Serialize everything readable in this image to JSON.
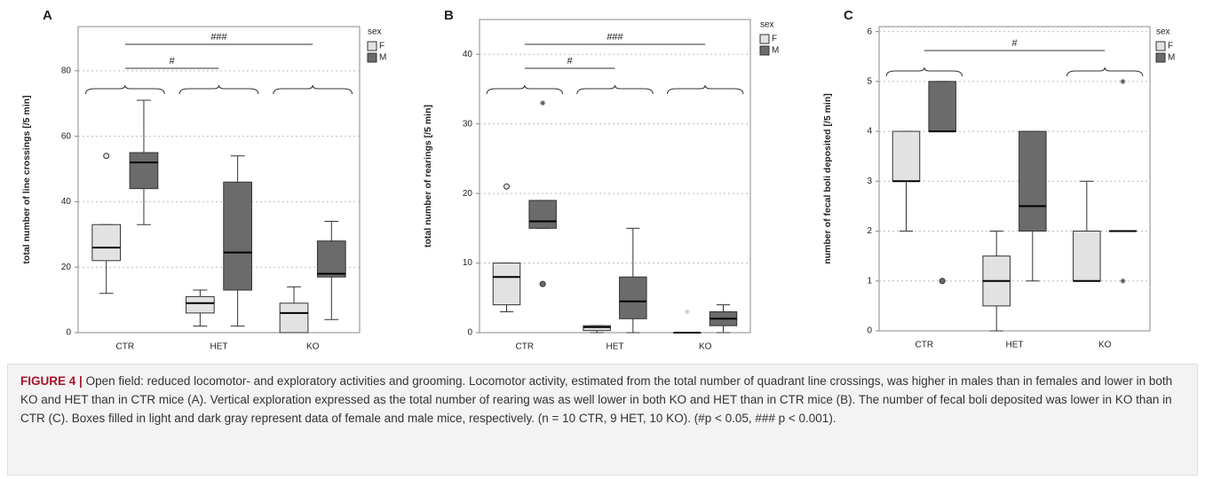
{
  "chart_data": [
    {
      "type": "box",
      "panel": "A",
      "ylabel": "total number of line crossings [/5 min]",
      "categories": [
        "CTR",
        "HET",
        "KO"
      ],
      "ylim": [
        0,
        93.5
      ],
      "yticks": [
        0,
        20,
        40,
        60,
        80
      ],
      "grid": true,
      "legend_title": "sex",
      "annotations": [
        "###",
        "#"
      ],
      "series": [
        {
          "name": "F",
          "color": "#e2e2e2",
          "values": [
            {
              "min": 12,
              "q1": 22,
              "median": 26,
              "q3": 33,
              "max": 33,
              "outliers": [
                54
              ],
              "extremes": []
            },
            {
              "min": 2,
              "q1": 6,
              "median": 9,
              "q3": 11,
              "max": 13,
              "outliers": [],
              "extremes": []
            },
            {
              "min": 0,
              "q1": 0,
              "median": 6,
              "q3": 9,
              "max": 14,
              "outliers": [],
              "extremes": []
            }
          ]
        },
        {
          "name": "M",
          "color": "#6b6b6b",
          "values": [
            {
              "min": 33,
              "q1": 44,
              "median": 52,
              "q3": 55,
              "max": 71,
              "outliers": [],
              "extremes": []
            },
            {
              "min": 2,
              "q1": 13,
              "median": 24.5,
              "q3": 46,
              "max": 54,
              "outliers": [],
              "extremes": []
            },
            {
              "min": 4,
              "q1": 17,
              "median": 18,
              "q3": 28,
              "max": 34,
              "outliers": [],
              "extremes": []
            }
          ]
        }
      ]
    },
    {
      "type": "box",
      "panel": "B",
      "ylabel": "total number of rearings [/5 min]",
      "categories": [
        "CTR",
        "HET",
        "KO"
      ],
      "ylim": [
        0,
        45
      ],
      "yticks": [
        0,
        10,
        20,
        30,
        40
      ],
      "grid": true,
      "legend_title": "sex",
      "annotations": [
        "###",
        "#"
      ],
      "series": [
        {
          "name": "F",
          "color": "#e2e2e2",
          "values": [
            {
              "min": 3,
              "q1": 4,
              "median": 8,
              "q3": 10,
              "max": 10,
              "outliers": [
                21
              ],
              "extremes": []
            },
            {
              "min": 0,
              "q1": 0.3,
              "median": 0.8,
              "q3": 1,
              "max": 1,
              "outliers": [],
              "extremes": []
            },
            {
              "min": 0,
              "q1": 0,
              "median": 0,
              "q3": 0,
              "max": 0,
              "outliers": [],
              "extremes": [
                3
              ]
            }
          ]
        },
        {
          "name": "M",
          "color": "#6b6b6b",
          "values": [
            {
              "min": 15,
              "q1": 15,
              "median": 16,
              "q3": 19,
              "max": 19,
              "outliers": [
                7
              ],
              "extremes": [
                33
              ]
            },
            {
              "min": 0,
              "q1": 2,
              "median": 4.5,
              "q3": 8,
              "max": 15,
              "outliers": [],
              "extremes": []
            },
            {
              "min": 0,
              "q1": 1,
              "median": 2,
              "q3": 3,
              "max": 4,
              "outliers": [],
              "extremes": []
            }
          ]
        }
      ]
    },
    {
      "type": "box",
      "panel": "C",
      "ylabel": "number of fecal boli deposited [/5 min]",
      "categories": [
        "CTR",
        "HET",
        "KO"
      ],
      "ylim": [
        0,
        6.1
      ],
      "yticks": [
        0,
        1,
        2,
        3,
        4,
        5,
        6
      ],
      "grid": true,
      "legend_title": "sex",
      "annotations": [
        "#"
      ],
      "series": [
        {
          "name": "F",
          "color": "#e2e2e2",
          "values": [
            {
              "min": 2,
              "q1": 3,
              "median": 3,
              "q3": 4,
              "max": 4,
              "outliers": [],
              "extremes": []
            },
            {
              "min": 0,
              "q1": 0.5,
              "median": 1,
              "q3": 1.5,
              "max": 2,
              "outliers": [],
              "extremes": []
            },
            {
              "min": 1,
              "q1": 1,
              "median": 1,
              "q3": 2,
              "max": 3,
              "outliers": [],
              "extremes": []
            }
          ]
        },
        {
          "name": "M",
          "color": "#6b6b6b",
          "values": [
            {
              "min": 4,
              "q1": 4,
              "median": 4,
              "q3": 5,
              "max": 5,
              "outliers": [
                1
              ],
              "extremes": []
            },
            {
              "min": 1,
              "q1": 2,
              "median": 2.5,
              "q3": 4,
              "max": 4,
              "outliers": [],
              "extremes": []
            },
            {
              "min": 2,
              "q1": 2,
              "median": 2,
              "q3": 2,
              "max": 2,
              "outliers": [],
              "extremes": [
                5,
                1
              ]
            }
          ]
        }
      ]
    }
  ],
  "caption": {
    "label": "FIGURE 4 |",
    "text": "Open field: reduced locomotor- and exploratory activities and grooming. Locomotor activity, estimated from the total number of quadrant line crossings, was higher in males than in females and lower in both KO and HET than in CTR mice (A). Vertical exploration expressed as the total number of rearing was as well lower in both KO and HET than in CTR mice (B). The number of fecal boli deposited was lower in KO than in CTR (C). Boxes filled in light and dark gray represent data of female and male mice, respectively. (n = 10 CTR, 9 HET, 10 KO). (#p < 0.05, ### p < 0.001)."
  }
}
